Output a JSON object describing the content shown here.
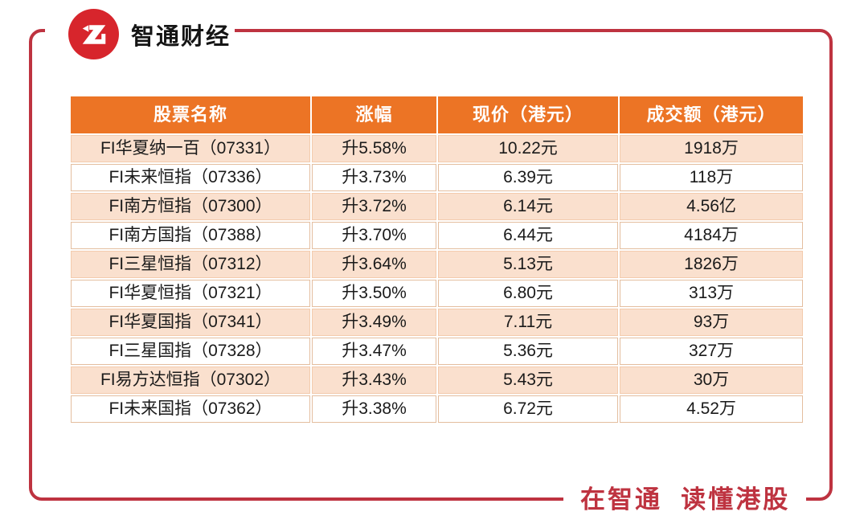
{
  "brand": {
    "name": "智通财经"
  },
  "table": {
    "headers": [
      "股票名称",
      "涨幅",
      "现价（港元）",
      "成交额（港元）"
    ],
    "rows": [
      [
        "FI华夏纳一百（07331）",
        "升5.58%",
        "10.22元",
        "1918万"
      ],
      [
        "FI未来恒指（07336）",
        "升3.73%",
        "6.39元",
        "118万"
      ],
      [
        "FI南方恒指（07300）",
        "升3.72%",
        "6.14元",
        "4.56亿"
      ],
      [
        "FI南方国指（07388）",
        "升3.70%",
        "6.44元",
        "4184万"
      ],
      [
        "FI三星恒指（07312）",
        "升3.64%",
        "5.13元",
        "1826万"
      ],
      [
        "FI华夏恒指（07321）",
        "升3.50%",
        "6.80元",
        "313万"
      ],
      [
        "FI华夏国指（07341）",
        "升3.49%",
        "7.11元",
        "93万"
      ],
      [
        "FI三星国指（07328）",
        "升3.47%",
        "5.36元",
        "327万"
      ],
      [
        "FI易方达恒指（07302）",
        "升3.43%",
        "5.43元",
        "30万"
      ],
      [
        "FI未来国指（07362）",
        "升3.38%",
        "6.72元",
        "4.52万"
      ]
    ]
  },
  "footer": {
    "slogan": "在智通  读懂港股"
  },
  "colors": {
    "header_bg": "#EC7425",
    "row_alt_bg": "#FAE0CE",
    "grid_line": "#E4BE9F",
    "frame_red": "#BE3340",
    "logo_red": "#D7252C"
  },
  "chart_data": {
    "type": "table",
    "title": "港股杠杆及反向产品涨幅榜（智通财经）",
    "columns": [
      "股票名称",
      "涨幅",
      "现价（港元）",
      "成交额（港元）"
    ],
    "rows": [
      [
        "FI华夏纳一百（07331）",
        "升5.58%",
        "10.22元",
        "1918万"
      ],
      [
        "FI未来恒指（07336）",
        "升3.73%",
        "6.39元",
        "118万"
      ],
      [
        "FI南方恒指（07300）",
        "升3.72%",
        "6.14元",
        "4.56亿"
      ],
      [
        "FI南方国指（07388）",
        "升3.70%",
        "6.44元",
        "4184万"
      ],
      [
        "FI三星恒指（07312）",
        "升3.64%",
        "5.13元",
        "1826万"
      ],
      [
        "FI华夏恒指（07321）",
        "升3.50%",
        "6.80元",
        "313万"
      ],
      [
        "FI华夏国指（07341）",
        "升3.49%",
        "7.11元",
        "93万"
      ],
      [
        "FI三星国指（07328）",
        "升3.47%",
        "5.36元",
        "327万"
      ],
      [
        "FI易方达恒指（07302）",
        "升3.43%",
        "5.43元",
        "30万"
      ],
      [
        "FI未来国指（07362）",
        "升3.38%",
        "6.72元",
        "4.52万"
      ]
    ],
    "change_pct": [
      5.58,
      3.73,
      3.72,
      3.7,
      3.64,
      3.5,
      3.49,
      3.47,
      3.43,
      3.38
    ],
    "price_hkd": [
      10.22,
      6.39,
      6.14,
      6.44,
      5.13,
      6.8,
      7.11,
      5.36,
      5.43,
      6.72
    ],
    "turnover_hkd": [
      "1918万",
      "118万",
      "4.56亿",
      "4184万",
      "1826万",
      "313万",
      "93万",
      "327万",
      "30万",
      "4.52万"
    ]
  }
}
